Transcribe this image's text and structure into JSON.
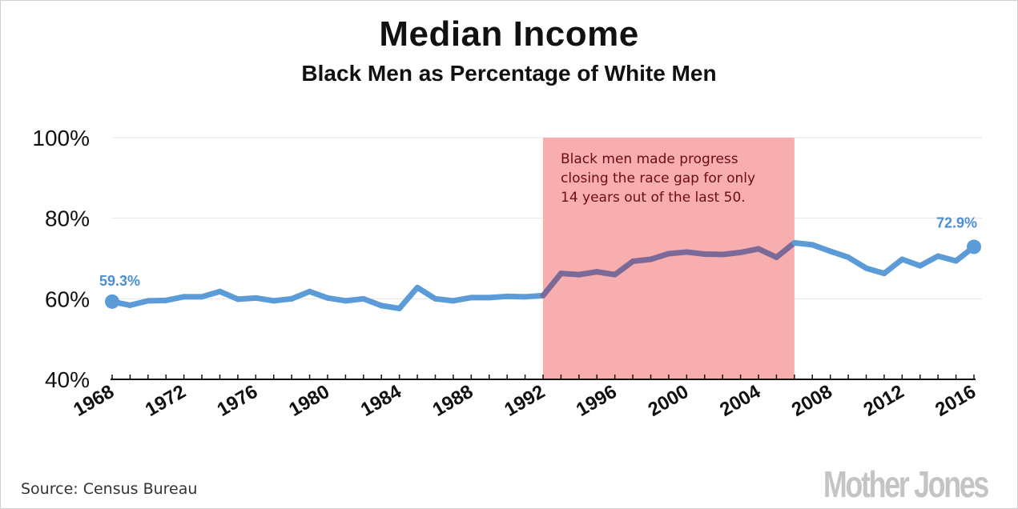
{
  "header": {
    "title": "Median Income",
    "subtitle": "Black Men as Percentage of White Men"
  },
  "footer": {
    "source": "Source:  Census Bureau",
    "logo_text": "Mother Jones"
  },
  "colors": {
    "line": "#5b9bd8",
    "highlight_line": "#7b6a98",
    "band": "#f8a9ab",
    "annotation_text": "#6b0d14",
    "end_label": "#4a8fd6"
  },
  "chart_data": {
    "type": "line",
    "title": "Median Income",
    "subtitle": "Black Men as Percentage of White Men",
    "xlabel": "",
    "ylabel": "",
    "ylim": [
      40,
      100
    ],
    "xlim": [
      1968,
      2016
    ],
    "yticks": [
      40,
      60,
      80,
      100
    ],
    "ytick_labels": [
      "40%",
      "60%",
      "80%",
      "100%"
    ],
    "xticks": [
      1968,
      1972,
      1976,
      1980,
      1984,
      1988,
      1992,
      1996,
      2000,
      2004,
      2008,
      2012,
      2016
    ],
    "xtick_labels": [
      "1968",
      "1972",
      "1976",
      "1980",
      "1984",
      "1988",
      "1992",
      "1996",
      "2000",
      "2004",
      "2008",
      "2012",
      "2016"
    ],
    "grid": true,
    "x": [
      1968,
      1969,
      1970,
      1971,
      1972,
      1973,
      1974,
      1975,
      1976,
      1977,
      1978,
      1979,
      1980,
      1981,
      1982,
      1983,
      1984,
      1985,
      1986,
      1987,
      1988,
      1989,
      1990,
      1991,
      1992,
      1993,
      1994,
      1995,
      1996,
      1997,
      1998,
      1999,
      2000,
      2001,
      2002,
      2003,
      2004,
      2005,
      2006,
      2007,
      2008,
      2009,
      2010,
      2011,
      2012,
      2013,
      2014,
      2015,
      2016
    ],
    "series": [
      {
        "values": [
          59.3,
          58.4,
          59.5,
          59.6,
          60.5,
          60.5,
          61.8,
          59.9,
          60.2,
          59.5,
          60.0,
          61.8,
          60.2,
          59.5,
          60.0,
          58.3,
          57.6,
          62.8,
          60.0,
          59.5,
          60.3,
          60.3,
          60.6,
          60.5,
          60.8,
          66.3,
          66.0,
          66.7,
          66.0,
          69.3,
          69.8,
          71.2,
          71.6,
          71.1,
          71.0,
          71.5,
          72.4,
          70.3,
          73.9,
          73.4,
          71.8,
          70.3,
          67.6,
          66.3,
          69.8,
          68.2,
          70.6,
          69.4,
          72.9
        ]
      }
    ],
    "highlight_range": [
      1992,
      2006
    ],
    "annotation": [
      "Black men made progress",
      "closing the race gap for only",
      "14 years out of the last 50."
    ],
    "end_labels": {
      "start": "59.3%",
      "end": "72.9%"
    }
  }
}
